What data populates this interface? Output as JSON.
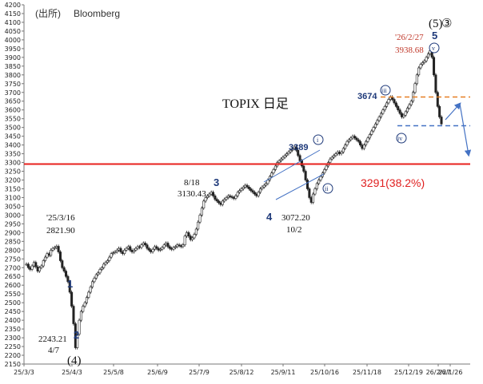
{
  "chart_data": {
    "type": "candlestick",
    "source_label": "(出所)",
    "source_name": "Bloomberg",
    "title": "TOPIX 日足",
    "ylim": [
      2150,
      4200
    ],
    "y_ticks": [
      2150,
      2200,
      2250,
      2300,
      2350,
      2400,
      2450,
      2500,
      2550,
      2600,
      2650,
      2700,
      2750,
      2800,
      2850,
      2900,
      2950,
      3000,
      3050,
      3100,
      3150,
      3200,
      3250,
      3300,
      3350,
      3400,
      3450,
      3500,
      3550,
      3600,
      3650,
      3700,
      3750,
      3800,
      3850,
      3900,
      3950,
      4000,
      4050,
      4100,
      4150,
      4200
    ],
    "x_ticks": [
      "25/3/3",
      "25/4/3",
      "25/5/8",
      "25/6/9",
      "25/7/9",
      "25/8/12",
      "25/9/11",
      "25/10/16",
      "25/11/18",
      "25/12/19",
      "26/1/26",
      "26/2/27"
    ],
    "series": [
      {
        "values": [
          2720,
          2700,
          2690,
          2710,
          2730,
          2705,
          2680,
          2700,
          2710,
          2740,
          2760,
          2780,
          2770,
          2800,
          2810,
          2815,
          2821.9,
          2790,
          2740,
          2700,
          2680,
          2650,
          2620,
          2560,
          2480,
          2380,
          2243.21,
          2320,
          2400,
          2450,
          2480,
          2500,
          2530,
          2560,
          2590,
          2620,
          2640,
          2660,
          2670,
          2690,
          2700,
          2720,
          2730,
          2740,
          2760,
          2780,
          2785,
          2790,
          2800,
          2810,
          2790,
          2780,
          2800,
          2810,
          2820,
          2800,
          2790,
          2800,
          2810,
          2820,
          2815,
          2830,
          2840,
          2830,
          2810,
          2800,
          2790,
          2805,
          2820,
          2810,
          2800,
          2805,
          2815,
          2830,
          2840,
          2820,
          2810,
          2805,
          2815,
          2820,
          2830,
          2825,
          2820,
          2830,
          2880,
          2900,
          2880,
          2860,
          2870,
          2890,
          2920,
          2960,
          3000,
          3040,
          3080,
          3100,
          3110,
          3120,
          3130.43,
          3110,
          3090,
          3080,
          3070,
          3060,
          3080,
          3090,
          3100,
          3110,
          3105,
          3100,
          3095,
          3110,
          3130,
          3140,
          3150,
          3160,
          3170,
          3160,
          3150,
          3140,
          3130,
          3120,
          3110,
          3130,
          3150,
          3160,
          3170,
          3180,
          3200,
          3220,
          3240,
          3260,
          3280,
          3300,
          3310,
          3320,
          3330,
          3340,
          3350,
          3360,
          3370,
          3380,
          3389,
          3370,
          3340,
          3310,
          3280,
          3250,
          3200,
          3150,
          3100,
          3072.2,
          3120,
          3150,
          3180,
          3200,
          3220,
          3240,
          3260,
          3280,
          3300,
          3320,
          3330,
          3340,
          3350,
          3360,
          3350,
          3360,
          3380,
          3400,
          3420,
          3430,
          3440,
          3450,
          3440,
          3430,
          3420,
          3400,
          3380,
          3400,
          3420,
          3440,
          3460,
          3480,
          3500,
          3520,
          3540,
          3560,
          3580,
          3600,
          3620,
          3640,
          3660,
          3674,
          3660,
          3640,
          3620,
          3600,
          3580,
          3560,
          3570,
          3590,
          3610,
          3630,
          3650,
          3700,
          3750,
          3800,
          3840,
          3860,
          3870,
          3880,
          3900,
          3920,
          3938.68,
          3900,
          3800,
          3700,
          3620,
          3560,
          3520
        ]
      }
    ],
    "horizontal_lines": [
      {
        "value": 3291,
        "color": "#e8201c",
        "style": "solid",
        "label": "3291(38.2%)"
      },
      {
        "value": 3674,
        "color": "#e67e22",
        "style": "dashed"
      },
      {
        "value": 3510,
        "color": "#4472c4",
        "style": "dashed"
      }
    ],
    "annotations": {
      "a1_date": "'25/3/16",
      "a1_value": "2821.90",
      "a2_value": "2243.21",
      "a2_date": "4/7",
      "a2_wave": "(4)",
      "a3_date": "8/18",
      "a3_value": "3130.43",
      "a4_value": "3072.20",
      "a4_date": "10/2",
      "a5_date": "'26/2/27",
      "a5_value": "3938.68",
      "lvl_3389": "3389",
      "lvl_3674": "3674",
      "wave_1": "1",
      "wave_2": "2",
      "wave_3": "3",
      "wave_4": "4",
      "wave_5": "5",
      "top_wave_5": "(5)",
      "top_wave_3": "③",
      "roman_i": "i",
      "roman_ii": "ii",
      "roman_iii": "iii",
      "roman_iv": "iv",
      "roman_v": "v"
    },
    "colors": {
      "axis": "#777777",
      "candle": "#222222",
      "support": "#e8201c",
      "resistance": "#e67e22",
      "blue": "#4472c4"
    }
  }
}
